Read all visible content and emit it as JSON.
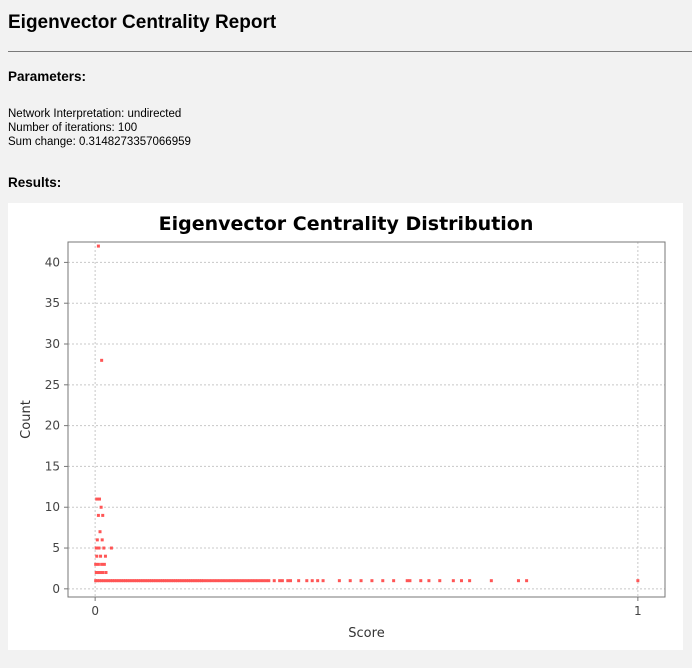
{
  "report": {
    "title": "Eigenvector Centrality Report",
    "parameters_heading": "Parameters:",
    "parameters": [
      "Network Interpretation: undirected",
      "Number of iterations: 100",
      "Sum change: 0.3148273357066959"
    ],
    "results_heading": "Results:"
  },
  "chart_data": {
    "type": "scatter",
    "title": "Eigenvector Centrality Distribution",
    "xlabel": "Score",
    "ylabel": "Count",
    "xlim": [
      -0.05,
      1.05
    ],
    "ylim": [
      -1,
      42.5
    ],
    "x_ticks": [
      0,
      1
    ],
    "y_ticks": [
      0,
      5,
      10,
      15,
      20,
      25,
      30,
      35,
      40
    ],
    "grid": true,
    "legend": "none",
    "color": "#ff5555",
    "points": [
      {
        "x": 0.006,
        "y": 42
      },
      {
        "x": 0.012,
        "y": 28
      },
      {
        "x": 0.003,
        "y": 11
      },
      {
        "x": 0.008,
        "y": 11
      },
      {
        "x": 0.011,
        "y": 10
      },
      {
        "x": 0.006,
        "y": 9
      },
      {
        "x": 0.014,
        "y": 9
      },
      {
        "x": 0.009,
        "y": 7
      },
      {
        "x": 0.004,
        "y": 6
      },
      {
        "x": 0.013,
        "y": 6
      },
      {
        "x": 0.002,
        "y": 5
      },
      {
        "x": 0.007,
        "y": 5
      },
      {
        "x": 0.016,
        "y": 5
      },
      {
        "x": 0.03,
        "y": 5
      },
      {
        "x": 0.003,
        "y": 4
      },
      {
        "x": 0.01,
        "y": 4
      },
      {
        "x": 0.019,
        "y": 4
      },
      {
        "x": 0.001,
        "y": 3
      },
      {
        "x": 0.006,
        "y": 3
      },
      {
        "x": 0.012,
        "y": 3
      },
      {
        "x": 0.017,
        "y": 3
      },
      {
        "x": 0.002,
        "y": 2
      },
      {
        "x": 0.005,
        "y": 2
      },
      {
        "x": 0.009,
        "y": 2
      },
      {
        "x": 0.014,
        "y": 2
      },
      {
        "x": 0.02,
        "y": 2
      },
      {
        "x": 0.001,
        "y": 1
      },
      {
        "x": 0.004,
        "y": 1
      },
      {
        "x": 0.008,
        "y": 1
      },
      {
        "x": 0.012,
        "y": 1
      },
      {
        "x": 0.016,
        "y": 1
      },
      {
        "x": 0.02,
        "y": 1
      },
      {
        "x": 0.024,
        "y": 1
      },
      {
        "x": 0.028,
        "y": 1
      },
      {
        "x": 0.032,
        "y": 1
      },
      {
        "x": 0.036,
        "y": 1
      },
      {
        "x": 0.04,
        "y": 1
      },
      {
        "x": 0.044,
        "y": 1
      },
      {
        "x": 0.048,
        "y": 1
      },
      {
        "x": 0.052,
        "y": 1
      },
      {
        "x": 0.056,
        "y": 1
      },
      {
        "x": 0.06,
        "y": 1
      },
      {
        "x": 0.064,
        "y": 1
      },
      {
        "x": 0.068,
        "y": 1
      },
      {
        "x": 0.072,
        "y": 1
      },
      {
        "x": 0.076,
        "y": 1
      },
      {
        "x": 0.08,
        "y": 1
      },
      {
        "x": 0.084,
        "y": 1
      },
      {
        "x": 0.088,
        "y": 1
      },
      {
        "x": 0.092,
        "y": 1
      },
      {
        "x": 0.096,
        "y": 1
      },
      {
        "x": 0.1,
        "y": 1
      },
      {
        "x": 0.104,
        "y": 1
      },
      {
        "x": 0.108,
        "y": 1
      },
      {
        "x": 0.112,
        "y": 1
      },
      {
        "x": 0.116,
        "y": 1
      },
      {
        "x": 0.12,
        "y": 1
      },
      {
        "x": 0.124,
        "y": 1
      },
      {
        "x": 0.128,
        "y": 1
      },
      {
        "x": 0.132,
        "y": 1
      },
      {
        "x": 0.136,
        "y": 1
      },
      {
        "x": 0.14,
        "y": 1
      },
      {
        "x": 0.144,
        "y": 1
      },
      {
        "x": 0.148,
        "y": 1
      },
      {
        "x": 0.152,
        "y": 1
      },
      {
        "x": 0.156,
        "y": 1
      },
      {
        "x": 0.16,
        "y": 1
      },
      {
        "x": 0.164,
        "y": 1
      },
      {
        "x": 0.168,
        "y": 1
      },
      {
        "x": 0.172,
        "y": 1
      },
      {
        "x": 0.176,
        "y": 1
      },
      {
        "x": 0.18,
        "y": 1
      },
      {
        "x": 0.184,
        "y": 1
      },
      {
        "x": 0.188,
        "y": 1
      },
      {
        "x": 0.192,
        "y": 1
      },
      {
        "x": 0.196,
        "y": 1
      },
      {
        "x": 0.2,
        "y": 1
      },
      {
        "x": 0.205,
        "y": 1
      },
      {
        "x": 0.21,
        "y": 1
      },
      {
        "x": 0.215,
        "y": 1
      },
      {
        "x": 0.22,
        "y": 1
      },
      {
        "x": 0.225,
        "y": 1
      },
      {
        "x": 0.23,
        "y": 1
      },
      {
        "x": 0.235,
        "y": 1
      },
      {
        "x": 0.24,
        "y": 1
      },
      {
        "x": 0.245,
        "y": 1
      },
      {
        "x": 0.25,
        "y": 1
      },
      {
        "x": 0.255,
        "y": 1
      },
      {
        "x": 0.26,
        "y": 1
      },
      {
        "x": 0.265,
        "y": 1
      },
      {
        "x": 0.27,
        "y": 1
      },
      {
        "x": 0.275,
        "y": 1
      },
      {
        "x": 0.28,
        "y": 1
      },
      {
        "x": 0.285,
        "y": 1
      },
      {
        "x": 0.29,
        "y": 1
      },
      {
        "x": 0.295,
        "y": 1
      },
      {
        "x": 0.3,
        "y": 1
      },
      {
        "x": 0.305,
        "y": 1
      },
      {
        "x": 0.31,
        "y": 1
      },
      {
        "x": 0.315,
        "y": 1
      },
      {
        "x": 0.32,
        "y": 1
      },
      {
        "x": 0.33,
        "y": 1
      },
      {
        "x": 0.34,
        "y": 1
      },
      {
        "x": 0.345,
        "y": 1
      },
      {
        "x": 0.355,
        "y": 1
      },
      {
        "x": 0.36,
        "y": 1
      },
      {
        "x": 0.375,
        "y": 1
      },
      {
        "x": 0.39,
        "y": 1
      },
      {
        "x": 0.4,
        "y": 1
      },
      {
        "x": 0.41,
        "y": 1
      },
      {
        "x": 0.42,
        "y": 1
      },
      {
        "x": 0.45,
        "y": 1
      },
      {
        "x": 0.47,
        "y": 1
      },
      {
        "x": 0.49,
        "y": 1
      },
      {
        "x": 0.51,
        "y": 1
      },
      {
        "x": 0.53,
        "y": 1
      },
      {
        "x": 0.55,
        "y": 1
      },
      {
        "x": 0.575,
        "y": 1
      },
      {
        "x": 0.58,
        "y": 1
      },
      {
        "x": 0.6,
        "y": 1
      },
      {
        "x": 0.615,
        "y": 1
      },
      {
        "x": 0.635,
        "y": 1
      },
      {
        "x": 0.66,
        "y": 1
      },
      {
        "x": 0.675,
        "y": 1
      },
      {
        "x": 0.69,
        "y": 1
      },
      {
        "x": 0.73,
        "y": 1
      },
      {
        "x": 0.78,
        "y": 1
      },
      {
        "x": 0.795,
        "y": 1
      },
      {
        "x": 1.0,
        "y": 1
      }
    ]
  }
}
